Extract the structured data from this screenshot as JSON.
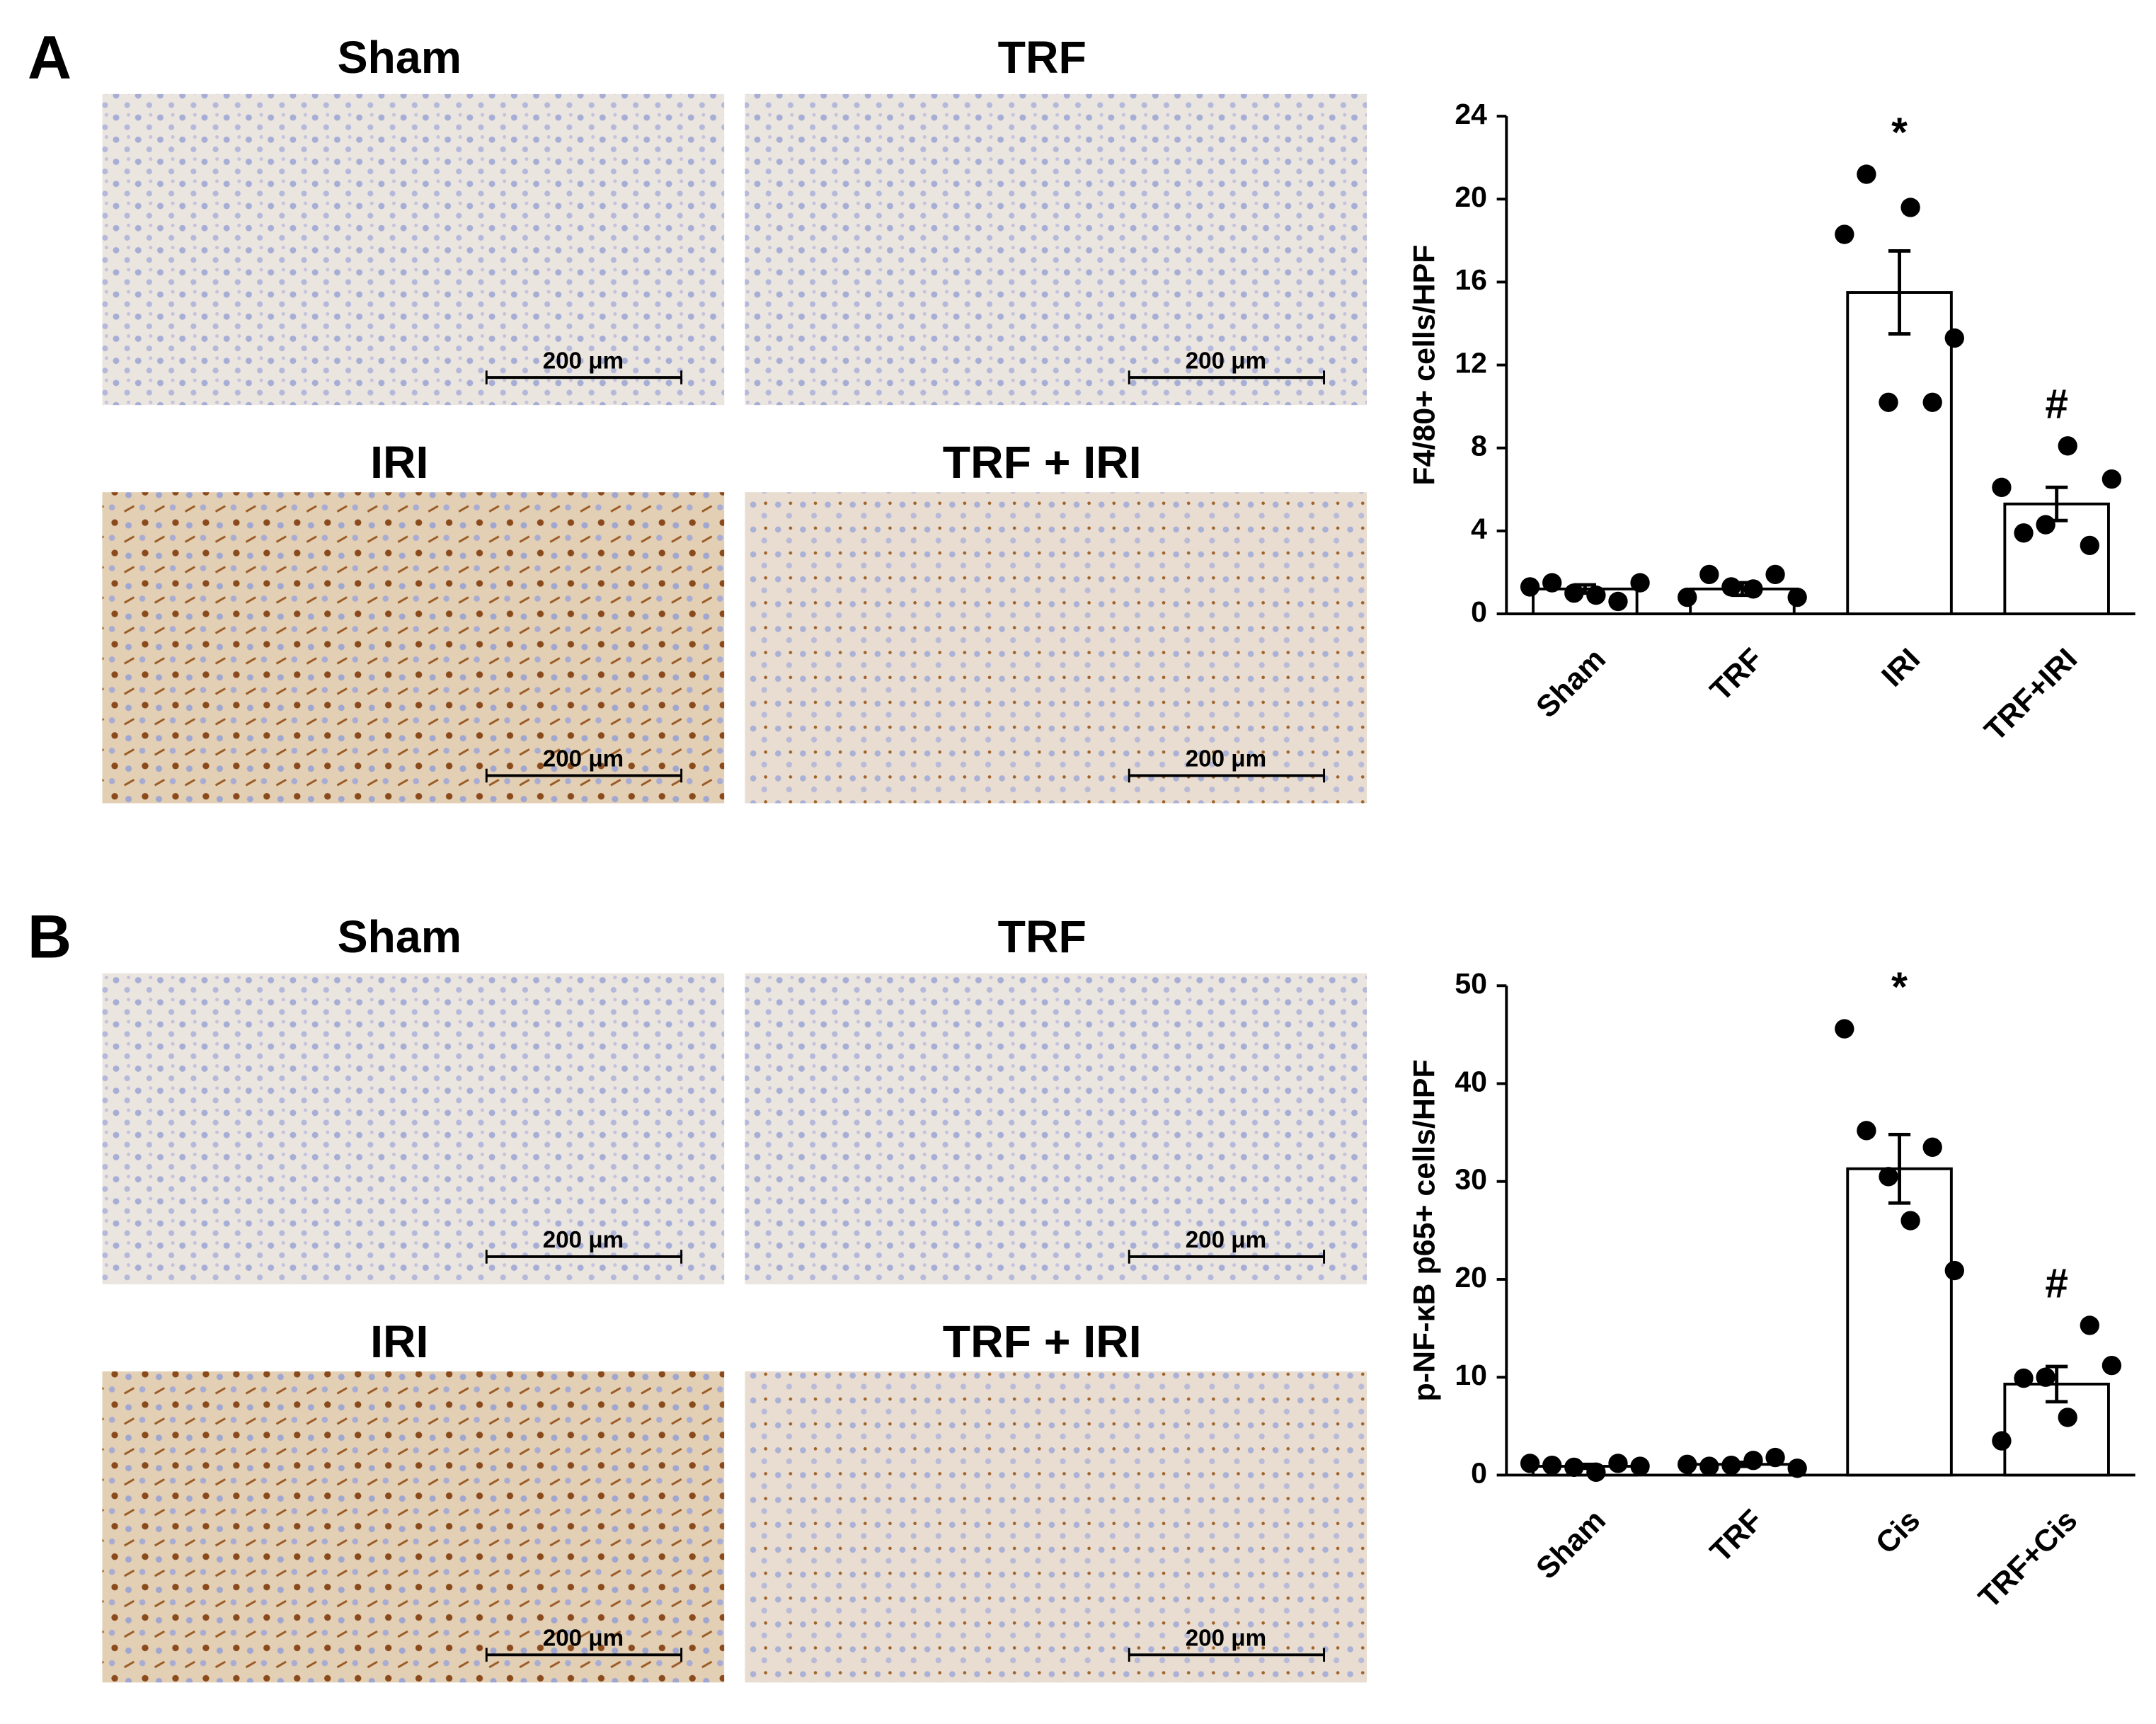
{
  "panels": [
    {
      "label": "A",
      "images": [
        {
          "title": "Sham",
          "scale_bar": "200 μm"
        },
        {
          "title": "TRF",
          "scale_bar": "200 μm"
        },
        {
          "title": "IRI",
          "scale_bar": "200 μm"
        },
        {
          "title": "TRF + IRI",
          "scale_bar": "200 μm"
        }
      ]
    },
    {
      "label": "B",
      "images": [
        {
          "title": "Sham",
          "scale_bar": "200 μm"
        },
        {
          "title": "TRF",
          "scale_bar": "200 μm"
        },
        {
          "title": "IRI",
          "scale_bar": "200 μm"
        },
        {
          "title": "TRF + IRI",
          "scale_bar": "200 μm"
        }
      ]
    }
  ],
  "chart_data": [
    {
      "type": "bar",
      "y_label": "F4/80+ cells/HPF",
      "categories": [
        "Sham",
        "TRF",
        "IRI",
        "TRF+IRI"
      ],
      "values": [
        1.2,
        1.2,
        15.5,
        5.3
      ],
      "errors": [
        0.2,
        0.3,
        2.0,
        0.8
      ],
      "points": [
        [
          1.3,
          1.5,
          1.0,
          0.9,
          0.6,
          1.5
        ],
        [
          0.8,
          1.9,
          1.3,
          1.2,
          1.9,
          0.8
        ],
        [
          18.3,
          21.2,
          10.2,
          19.6,
          10.2,
          13.3
        ],
        [
          6.1,
          3.9,
          4.3,
          8.1,
          3.3,
          6.5
        ]
      ],
      "annotations": [
        null,
        null,
        "*",
        "#"
      ],
      "ylim": [
        0,
        24
      ],
      "yticks": [
        0,
        4,
        8,
        12,
        16,
        20,
        24
      ],
      "color": "#ffffff",
      "edge_color": "#000000",
      "point_color": "#000000"
    },
    {
      "type": "bar",
      "y_label": "p-NF-κB p65+ cells/HPF",
      "categories": [
        "Sham",
        "TRF",
        "Cis",
        "TRF+Cis"
      ],
      "values": [
        0.9,
        1.1,
        31.3,
        9.3
      ],
      "errors": [
        0.2,
        0.2,
        3.5,
        1.8
      ],
      "points": [
        [
          1.2,
          1.0,
          0.8,
          0.3,
          1.2,
          0.9
        ],
        [
          1.1,
          0.9,
          1.0,
          1.5,
          1.8,
          0.7
        ],
        [
          45.6,
          35.2,
          30.5,
          26.0,
          33.5,
          20.9
        ],
        [
          3.5,
          9.9,
          10.0,
          5.9,
          15.3,
          11.2
        ]
      ],
      "annotations": [
        null,
        null,
        "*",
        "#"
      ],
      "ylim": [
        0,
        50
      ],
      "yticks": [
        0,
        10,
        20,
        30,
        40,
        50
      ],
      "color": "#ffffff",
      "edge_color": "#000000",
      "point_color": "#000000"
    }
  ]
}
